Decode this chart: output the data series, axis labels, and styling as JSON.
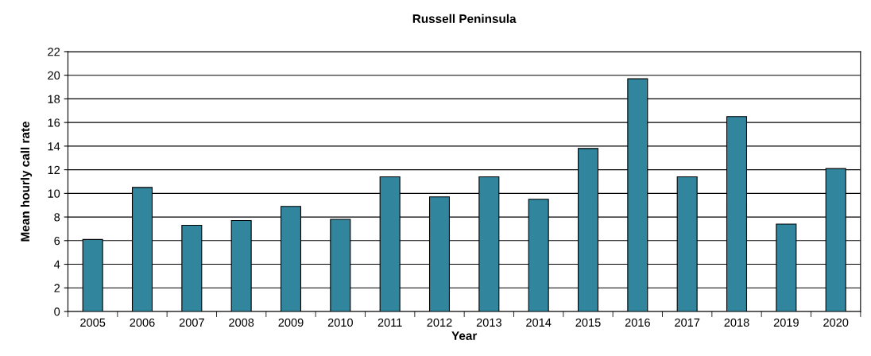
{
  "chart_data": {
    "type": "bar",
    "title": "Russell Peninsula",
    "xlabel": "Year",
    "ylabel": "Mean hourly call rate",
    "categories": [
      "2005",
      "2006",
      "2007",
      "2008",
      "2009",
      "2010",
      "2011",
      "2012",
      "2013",
      "2014",
      "2015",
      "2016",
      "2017",
      "2018",
      "2019",
      "2020"
    ],
    "values": [
      6.1,
      10.5,
      7.3,
      7.7,
      8.9,
      7.8,
      11.4,
      9.7,
      11.4,
      9.5,
      13.8,
      19.7,
      11.4,
      16.5,
      7.4,
      12.1
    ],
    "color": "#31859c",
    "ylim": [
      0,
      22
    ],
    "yticks": [
      0,
      2,
      4,
      6,
      8,
      10,
      12,
      14,
      16,
      18,
      20,
      22
    ],
    "grid": "y"
  }
}
